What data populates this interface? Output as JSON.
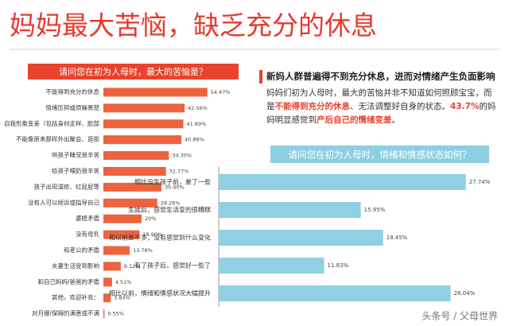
{
  "page": {
    "title": "妈妈最大苦恼，缺乏充分的休息",
    "headline": "新妈人群普遍得不到充分休息，进而对情绪产生负面影响",
    "paragraph": [
      {
        "text": "妈妈们初为人母时，最大的苦恼并非不知道如何照顾宝宝，而是",
        "highlight": false
      },
      {
        "text": "不能得到充分的休息",
        "highlight": true
      },
      {
        "text": "、无法调整好自身的状态。",
        "highlight": false
      },
      {
        "text": "43.7%",
        "highlight": true
      },
      {
        "text": "的妈妈明显感觉到",
        "highlight": false
      },
      {
        "text": "产后自己的情绪变差",
        "highlight": true
      },
      {
        "text": "。",
        "highlight": false
      }
    ],
    "watermark": "头条号 / 父母世界"
  },
  "chart_data": [
    {
      "type": "bar",
      "orientation": "horizontal",
      "title": "请问您在初为人母时，最大的苦恼是？",
      "color": "#ec6340",
      "header_color": "#e8432c",
      "categories": [
        "不能得到充分的休息",
        "情绪压抑或烦躁易怒",
        "自我形象变差（包括身材走样、脸部",
        "不能像原来那样外出聚会、逛街",
        "哄孩子睡觉很辛苦",
        "给孩子喂奶很辛苦",
        "孩子出现湿疹、红屁屁等",
        "没有人可以倾诉或指导自己",
        "婆媳矛盾",
        "没有母乳",
        "和老公的矛盾",
        "夫妻生活受到影响",
        "和自己妈妈/爸爸的矛盾",
        "其他，欢迎补充：",
        "对月嫂/保姆的满意或不满"
      ],
      "values": [
        54.47,
        42.56,
        41.89,
        40.88,
        34.3,
        32.77,
        30.4,
        28.26,
        20,
        18.9,
        13.78,
        9.12,
        4.51,
        3.84,
        0.55
      ],
      "value_labels": [
        "54.47%",
        "42.56%",
        "41.89%",
        "40.88%",
        "34.30%",
        "32.77%",
        "30.40%",
        "28.26%",
        "20%",
        "18.90%",
        "13.78%",
        "9.12%",
        "4.51%",
        "3.84%",
        "0.55%"
      ]
    },
    {
      "type": "bar",
      "orientation": "horizontal",
      "title": "请问您在初为人母时，情绪和情感状态如何？",
      "color": "#8fd0e2",
      "header_color": "#8ccfe3",
      "categories": [
        "相比没生孩子前，差了一些",
        "生娃后，感觉生活变的很糟糕",
        "和以前差不多，没有感觉到什么变化",
        "有了孩子后，感觉好一些了",
        "相比以前，情绪和情感状况大幅提升"
      ],
      "values": [
        27.74,
        15.95,
        18.45,
        11.83,
        26.04
      ],
      "value_labels": [
        "27.74%",
        "15.95%",
        "18.45%",
        "11.83%",
        "26.04%"
      ]
    }
  ]
}
